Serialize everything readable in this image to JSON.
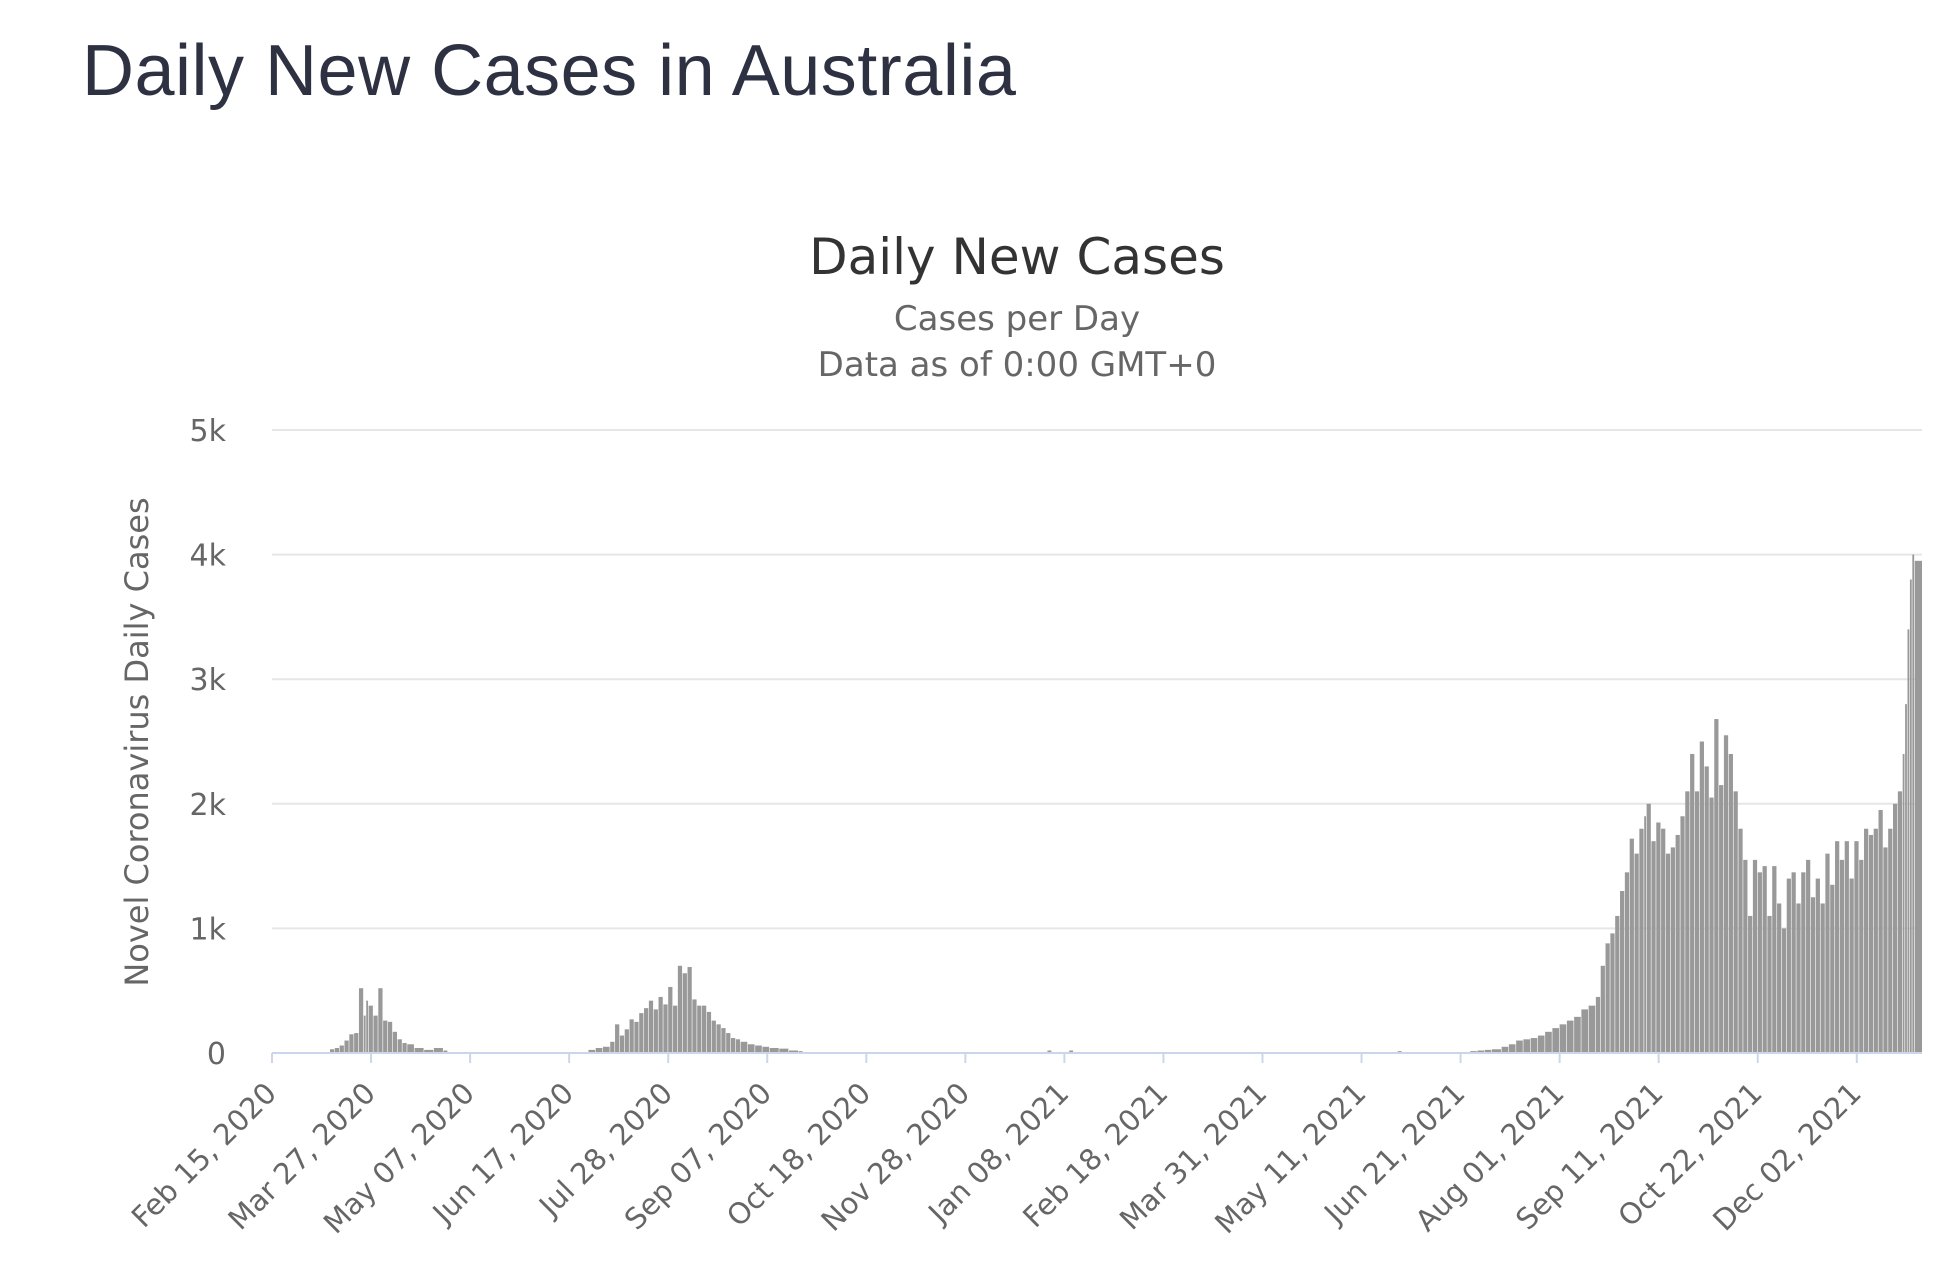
{
  "page": {
    "heading": "Daily New Cases in Australia"
  },
  "chart_data": {
    "type": "bar",
    "title": "Daily New Cases",
    "subtitle_1": "Cases per Day",
    "subtitle_2": "Data as of 0:00 GMT+0",
    "xlabel": "",
    "ylabel": "Novel Coronavirus Daily Cases",
    "x_start": "2020-02-15",
    "x_end": "2021-12-29",
    "ylim": [
      0,
      5000
    ],
    "y_ticks": [
      0,
      1000,
      2000,
      3000,
      4000,
      5000
    ],
    "y_tick_labels": [
      "0",
      "1k",
      "2k",
      "3k",
      "4k",
      "5k"
    ],
    "x_tick_labels": [
      "Feb 15, 2020",
      "Mar 27, 2020",
      "May 07, 2020",
      "Jun 17, 2020",
      "Jul 28, 2020",
      "Sep 07, 2020",
      "Oct 18, 2020",
      "Nov 28, 2020",
      "Jan 08, 2021",
      "Feb 18, 2021",
      "Mar 31, 2021",
      "May 11, 2021",
      "Jun 21, 2021",
      "Aug 01, 2021",
      "Sep 11, 2021",
      "Oct 22, 2021",
      "Dec 02, 2021"
    ],
    "grid": true,
    "bar_color": "#999999",
    "series": [
      {
        "points": [
          [
            "2020-03-10",
            30
          ],
          [
            "2020-03-12",
            40
          ],
          [
            "2020-03-14",
            60
          ],
          [
            "2020-03-16",
            100
          ],
          [
            "2020-03-18",
            150
          ],
          [
            "2020-03-20",
            160
          ],
          [
            "2020-03-22",
            520
          ],
          [
            "2020-03-24",
            300
          ],
          [
            "2020-03-25",
            420
          ],
          [
            "2020-03-26",
            380
          ],
          [
            "2020-03-28",
            300
          ],
          [
            "2020-03-30",
            520
          ],
          [
            "2020-04-01",
            260
          ],
          [
            "2020-04-03",
            250
          ],
          [
            "2020-04-05",
            170
          ],
          [
            "2020-04-07",
            110
          ],
          [
            "2020-04-09",
            80
          ],
          [
            "2020-04-11",
            70
          ],
          [
            "2020-04-14",
            40
          ],
          [
            "2020-04-18",
            25
          ],
          [
            "2020-04-22",
            40
          ],
          [
            "2020-04-26",
            20
          ],
          [
            "2020-06-25",
            25
          ],
          [
            "2020-06-28",
            40
          ],
          [
            "2020-07-01",
            50
          ],
          [
            "2020-07-04",
            90
          ],
          [
            "2020-07-06",
            230
          ],
          [
            "2020-07-08",
            140
          ],
          [
            "2020-07-10",
            190
          ],
          [
            "2020-07-12",
            270
          ],
          [
            "2020-07-14",
            250
          ],
          [
            "2020-07-16",
            320
          ],
          [
            "2020-07-18",
            360
          ],
          [
            "2020-07-20",
            420
          ],
          [
            "2020-07-22",
            350
          ],
          [
            "2020-07-24",
            450
          ],
          [
            "2020-07-26",
            390
          ],
          [
            "2020-07-28",
            530
          ],
          [
            "2020-07-30",
            380
          ],
          [
            "2020-08-01",
            700
          ],
          [
            "2020-08-03",
            640
          ],
          [
            "2020-08-05",
            690
          ],
          [
            "2020-08-07",
            430
          ],
          [
            "2020-08-09",
            380
          ],
          [
            "2020-08-11",
            380
          ],
          [
            "2020-08-13",
            330
          ],
          [
            "2020-08-15",
            260
          ],
          [
            "2020-08-17",
            230
          ],
          [
            "2020-08-19",
            200
          ],
          [
            "2020-08-21",
            160
          ],
          [
            "2020-08-23",
            120
          ],
          [
            "2020-08-25",
            110
          ],
          [
            "2020-08-27",
            90
          ],
          [
            "2020-08-30",
            70
          ],
          [
            "2020-09-02",
            60
          ],
          [
            "2020-09-05",
            50
          ],
          [
            "2020-09-08",
            40
          ],
          [
            "2020-09-12",
            35
          ],
          [
            "2020-09-16",
            20
          ],
          [
            "2020-09-20",
            15
          ],
          [
            "2021-01-01",
            20
          ],
          [
            "2021-01-10",
            20
          ],
          [
            "2021-05-26",
            15
          ],
          [
            "2021-06-25",
            15
          ],
          [
            "2021-06-28",
            20
          ],
          [
            "2021-07-01",
            25
          ],
          [
            "2021-07-04",
            30
          ],
          [
            "2021-07-08",
            50
          ],
          [
            "2021-07-11",
            70
          ],
          [
            "2021-07-14",
            100
          ],
          [
            "2021-07-17",
            110
          ],
          [
            "2021-07-20",
            120
          ],
          [
            "2021-07-23",
            140
          ],
          [
            "2021-07-26",
            170
          ],
          [
            "2021-07-29",
            200
          ],
          [
            "2021-08-01",
            230
          ],
          [
            "2021-08-04",
            260
          ],
          [
            "2021-08-07",
            290
          ],
          [
            "2021-08-10",
            350
          ],
          [
            "2021-08-13",
            380
          ],
          [
            "2021-08-16",
            450
          ],
          [
            "2021-08-18",
            700
          ],
          [
            "2021-08-20",
            880
          ],
          [
            "2021-08-22",
            960
          ],
          [
            "2021-08-24",
            1100
          ],
          [
            "2021-08-26",
            1300
          ],
          [
            "2021-08-28",
            1450
          ],
          [
            "2021-08-30",
            1720
          ],
          [
            "2021-09-01",
            1600
          ],
          [
            "2021-09-03",
            1800
          ],
          [
            "2021-09-05",
            1900
          ],
          [
            "2021-09-06",
            2000
          ],
          [
            "2021-09-08",
            1700
          ],
          [
            "2021-09-10",
            1850
          ],
          [
            "2021-09-12",
            1800
          ],
          [
            "2021-09-14",
            1600
          ],
          [
            "2021-09-16",
            1650
          ],
          [
            "2021-09-18",
            1750
          ],
          [
            "2021-09-20",
            1900
          ],
          [
            "2021-09-22",
            2100
          ],
          [
            "2021-09-24",
            2400
          ],
          [
            "2021-09-26",
            2100
          ],
          [
            "2021-09-28",
            2500
          ],
          [
            "2021-09-30",
            2300
          ],
          [
            "2021-10-02",
            2050
          ],
          [
            "2021-10-04",
            2680
          ],
          [
            "2021-10-06",
            2150
          ],
          [
            "2021-10-08",
            2550
          ],
          [
            "2021-10-10",
            2400
          ],
          [
            "2021-10-12",
            2100
          ],
          [
            "2021-10-14",
            1800
          ],
          [
            "2021-10-16",
            1550
          ],
          [
            "2021-10-18",
            1100
          ],
          [
            "2021-10-20",
            1550
          ],
          [
            "2021-10-22",
            1450
          ],
          [
            "2021-10-24",
            1500
          ],
          [
            "2021-10-26",
            1100
          ],
          [
            "2021-10-28",
            1500
          ],
          [
            "2021-10-30",
            1200
          ],
          [
            "2021-11-01",
            1000
          ],
          [
            "2021-11-03",
            1400
          ],
          [
            "2021-11-05",
            1450
          ],
          [
            "2021-11-07",
            1200
          ],
          [
            "2021-11-09",
            1450
          ],
          [
            "2021-11-11",
            1550
          ],
          [
            "2021-11-13",
            1250
          ],
          [
            "2021-11-15",
            1400
          ],
          [
            "2021-11-17",
            1200
          ],
          [
            "2021-11-19",
            1600
          ],
          [
            "2021-11-21",
            1350
          ],
          [
            "2021-11-23",
            1700
          ],
          [
            "2021-11-25",
            1550
          ],
          [
            "2021-11-27",
            1700
          ],
          [
            "2021-11-29",
            1400
          ],
          [
            "2021-12-01",
            1700
          ],
          [
            "2021-12-03",
            1550
          ],
          [
            "2021-12-05",
            1800
          ],
          [
            "2021-12-07",
            1750
          ],
          [
            "2021-12-09",
            1800
          ],
          [
            "2021-12-11",
            1950
          ],
          [
            "2021-12-13",
            1650
          ],
          [
            "2021-12-15",
            1800
          ],
          [
            "2021-12-17",
            2000
          ],
          [
            "2021-12-19",
            2100
          ],
          [
            "2021-12-21",
            2400
          ],
          [
            "2021-12-22",
            2800
          ],
          [
            "2021-12-23",
            3400
          ],
          [
            "2021-12-24",
            3800
          ],
          [
            "2021-12-25",
            4000
          ],
          [
            "2021-12-26",
            3950
          ]
        ]
      }
    ]
  }
}
